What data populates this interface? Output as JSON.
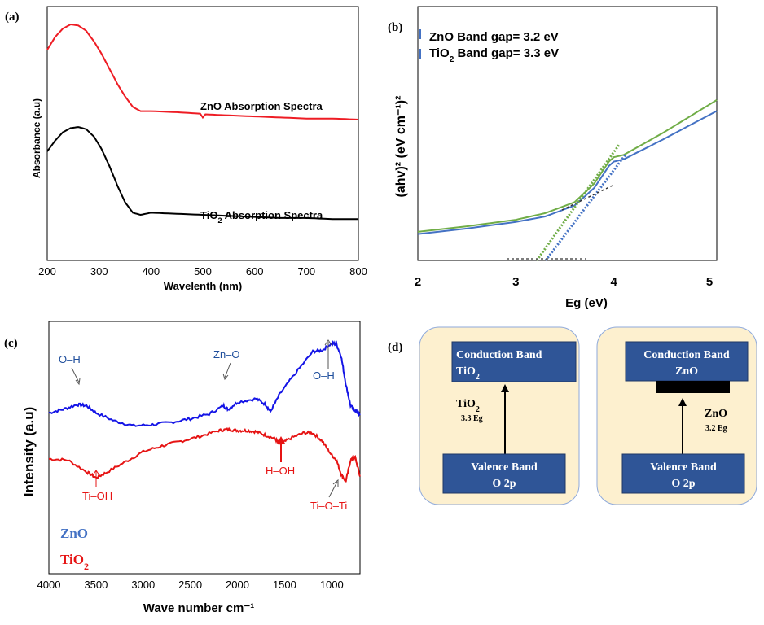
{
  "colors": {
    "zno_a": "#ee1c24",
    "tio2_a": "#000000",
    "zno_b": "#4472c4",
    "tio2_b": "#70ad47",
    "zno_c": "#1414e6",
    "tio2_c": "#e61414",
    "band_box": "#2f5597",
    "panel_bg": "#fdf0cf",
    "panel_border": "#8ea9db"
  },
  "chart_data": [
    {
      "id": "a",
      "type": "line",
      "panel_label": "(a)",
      "xlabel": "Wavelenth (nm)",
      "ylabel": "Absorbance (a.u)",
      "xlim": [
        200,
        800
      ],
      "ylim": [
        0,
        1
      ],
      "xticks": [
        "200",
        "300",
        "400",
        "500",
        "600",
        "700",
        "800"
      ],
      "series": [
        {
          "name": "ZnO Absorption Spectra",
          "x": [
            200,
            215,
            230,
            245,
            260,
            275,
            290,
            305,
            320,
            335,
            350,
            365,
            380,
            400,
            450,
            495,
            500,
            505,
            550,
            600,
            650,
            700,
            750,
            800
          ],
          "y": [
            0.88,
            0.94,
            0.98,
            1.0,
            0.995,
            0.97,
            0.92,
            0.86,
            0.79,
            0.72,
            0.66,
            0.61,
            0.59,
            0.59,
            0.585,
            0.578,
            0.56,
            0.575,
            0.57,
            0.565,
            0.56,
            0.555,
            0.555,
            0.55
          ]
        },
        {
          "name": "TiO2 Absorption Spectra",
          "x": [
            200,
            215,
            230,
            245,
            260,
            275,
            290,
            305,
            320,
            335,
            350,
            365,
            380,
            400,
            450,
            500,
            550,
            600,
            650,
            700,
            750,
            800
          ],
          "y": [
            0.4,
            0.45,
            0.49,
            0.51,
            0.515,
            0.505,
            0.47,
            0.41,
            0.33,
            0.24,
            0.16,
            0.11,
            0.1,
            0.11,
            0.105,
            0.1,
            0.095,
            0.09,
            0.085,
            0.085,
            0.08,
            0.08
          ]
        }
      ]
    },
    {
      "id": "b",
      "type": "line",
      "panel_label": "(b)",
      "xlabel": "Eg (eV)",
      "ylabel": "(ahv)² (eV cm⁻¹)²",
      "xlim": [
        2,
        5.05
      ],
      "ylim": [
        0,
        1
      ],
      "xticks": [
        "2",
        "3",
        "4",
        "5"
      ],
      "legend": [
        "ZnO Band gap= 3.2 eV",
        "TiO2 Band gap= 3.3 eV"
      ],
      "series": [
        {
          "name": "ZnO",
          "x": [
            2.0,
            2.5,
            3.0,
            3.3,
            3.6,
            3.8,
            3.95,
            4.0,
            4.1,
            4.5,
            5.05
          ],
          "y": [
            0.12,
            0.145,
            0.175,
            0.2,
            0.25,
            0.33,
            0.43,
            0.45,
            0.46,
            0.55,
            0.68
          ]
        },
        {
          "name": "TiO2",
          "x": [
            2.0,
            2.5,
            3.0,
            3.3,
            3.6,
            3.8,
            3.95,
            4.0,
            4.1,
            4.5,
            5.05
          ],
          "y": [
            0.13,
            0.155,
            0.185,
            0.215,
            0.265,
            0.35,
            0.45,
            0.47,
            0.48,
            0.58,
            0.73
          ]
        }
      ]
    },
    {
      "id": "c",
      "type": "line",
      "panel_label": "(c)",
      "xlabel": "Wave number cm⁻¹",
      "ylabel": "Intensity (a.u)",
      "xlim": [
        4000,
        700
      ],
      "ylim": [
        0,
        1
      ],
      "xticks": [
        "4000",
        "3500",
        "3000",
        "2500",
        "2000",
        "1500",
        "1000"
      ],
      "legend": [
        "ZnO",
        "TiO2"
      ],
      "series": [
        {
          "name": "ZnO",
          "x": [
            4000,
            3850,
            3700,
            3600,
            3500,
            3300,
            3100,
            2900,
            2700,
            2500,
            2300,
            2150,
            2100,
            2000,
            1800,
            1700,
            1650,
            1550,
            1400,
            1200,
            1100,
            1000,
            950,
            900,
            850,
            800,
            750,
            700
          ],
          "y": [
            0.63,
            0.645,
            0.665,
            0.66,
            0.63,
            0.595,
            0.575,
            0.58,
            0.59,
            0.605,
            0.625,
            0.66,
            0.645,
            0.675,
            0.69,
            0.665,
            0.635,
            0.71,
            0.79,
            0.89,
            0.895,
            0.925,
            0.92,
            0.87,
            0.75,
            0.66,
            0.64,
            0.62
          ]
        },
        {
          "name": "TiO2",
          "x": [
            4000,
            3800,
            3600,
            3500,
            3400,
            3200,
            3000,
            2800,
            2600,
            2400,
            2200,
            2100,
            2000,
            1900,
            1800,
            1700,
            1600,
            1550,
            1450,
            1300,
            1200,
            1100,
            1000,
            950,
            900,
            850,
            800,
            750,
            700
          ],
          "y": [
            0.435,
            0.43,
            0.38,
            0.355,
            0.375,
            0.42,
            0.465,
            0.49,
            0.51,
            0.53,
            0.555,
            0.56,
            0.555,
            0.555,
            0.55,
            0.535,
            0.52,
            0.495,
            0.52,
            0.545,
            0.545,
            0.51,
            0.45,
            0.43,
            0.37,
            0.34,
            0.43,
            0.44,
            0.36
          ]
        }
      ],
      "annotations": [
        "O–H",
        "Zn–O",
        "O–H",
        "Ti–OH",
        "H–OH",
        "Ti–O–Ti"
      ]
    },
    {
      "id": "d",
      "type": "diagram",
      "panel_label": "(d)",
      "left": {
        "cb_line1": "Conduction Band",
        "cb_line2": "TiO2",
        "vb_line1": "Valence Band",
        "vb_line2": "O 2p",
        "material": "TiO2",
        "gap": "3.3 Eg"
      },
      "right": {
        "cb_line1": "Conduction Band",
        "cb_line2": "ZnO",
        "vb_line1": "Valence Band",
        "vb_line2": "O 2p",
        "material": "ZnO",
        "gap": "3.2 Eg"
      }
    }
  ]
}
